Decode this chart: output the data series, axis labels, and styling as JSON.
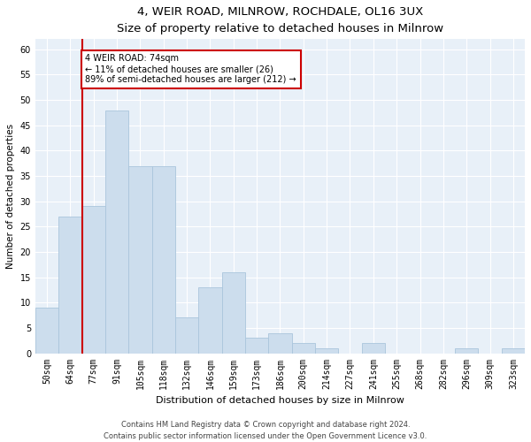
{
  "title1": "4, WEIR ROAD, MILNROW, ROCHDALE, OL16 3UX",
  "title2": "Size of property relative to detached houses in Milnrow",
  "xlabel": "Distribution of detached houses by size in Milnrow",
  "ylabel": "Number of detached properties",
  "categories": [
    "50sqm",
    "64sqm",
    "77sqm",
    "91sqm",
    "105sqm",
    "118sqm",
    "132sqm",
    "146sqm",
    "159sqm",
    "173sqm",
    "186sqm",
    "200sqm",
    "214sqm",
    "227sqm",
    "241sqm",
    "255sqm",
    "268sqm",
    "282sqm",
    "296sqm",
    "309sqm",
    "323sqm"
  ],
  "values": [
    9,
    27,
    29,
    48,
    37,
    37,
    7,
    13,
    16,
    3,
    4,
    2,
    1,
    0,
    2,
    0,
    0,
    0,
    1,
    0,
    1
  ],
  "bar_color": "#ccdded",
  "bar_edge_color": "#aac5dc",
  "vline_x": 1.5,
  "vline_color": "#cc0000",
  "annotation_text": "4 WEIR ROAD: 74sqm\n← 11% of detached houses are smaller (26)\n89% of semi-detached houses are larger (212) →",
  "annotation_box_color": "#ffffff",
  "annotation_box_edge": "#cc0000",
  "ylim": [
    0,
    62
  ],
  "yticks": [
    0,
    5,
    10,
    15,
    20,
    25,
    30,
    35,
    40,
    45,
    50,
    55,
    60
  ],
  "footer1": "Contains HM Land Registry data © Crown copyright and database right 2024.",
  "footer2": "Contains public sector information licensed under the Open Government Licence v3.0.",
  "bg_color": "#ffffff",
  "plot_bg_color": "#e8f0f8",
  "grid_color": "#ffffff",
  "title1_fontsize": 9.5,
  "title2_fontsize": 8.5,
  "xlabel_fontsize": 8,
  "ylabel_fontsize": 7.5,
  "tick_fontsize": 7,
  "footer_fontsize": 6,
  "annot_fontsize": 7
}
